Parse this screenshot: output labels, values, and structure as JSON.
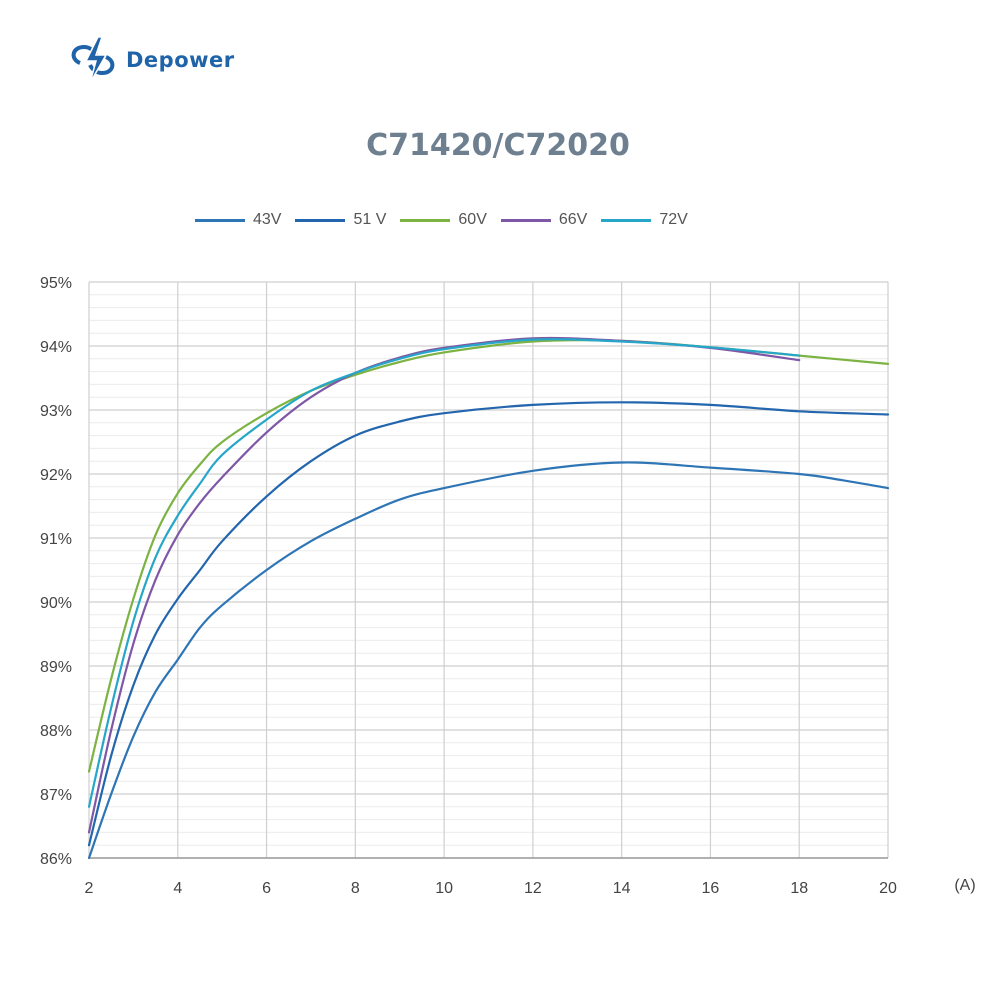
{
  "brand": {
    "logo_text": "Depower",
    "logo_icon": "lightning-bolt-plug-logo",
    "color": "#1f63a8"
  },
  "chart_data": {
    "type": "line",
    "title": "C71420/C72020",
    "xlabel": "",
    "ylabel": "",
    "x_unit_label": "(A)",
    "xlim": [
      2,
      20
    ],
    "ylim": [
      86,
      95
    ],
    "x_ticks": [
      "2",
      "4",
      "6",
      "8",
      "10",
      "12",
      "14",
      "16",
      "18",
      "20"
    ],
    "y_ticks": [
      "86%",
      "87%",
      "88%",
      "89%",
      "90%",
      "91%",
      "92%",
      "93%",
      "94%",
      "95%"
    ],
    "grid": true,
    "legend_position": "top",
    "series": [
      {
        "name": "43V",
        "color": "#2e75b6",
        "x": [
          2,
          2.5,
          3,
          3.5,
          4,
          4.5,
          5,
          6,
          7,
          8,
          9,
          10,
          12,
          14,
          16,
          18,
          19,
          20
        ],
        "y": [
          86.0,
          87.0,
          87.9,
          88.6,
          89.1,
          89.6,
          89.95,
          90.5,
          90.95,
          91.3,
          91.6,
          91.78,
          92.05,
          92.18,
          92.1,
          92.0,
          91.9,
          91.78
        ]
      },
      {
        "name": "51 V",
        "color": "#2366ad",
        "x": [
          2,
          2.5,
          3,
          3.5,
          4,
          4.5,
          5,
          6,
          7,
          8,
          9,
          10,
          12,
          14,
          16,
          18,
          20
        ],
        "y": [
          86.2,
          87.6,
          88.7,
          89.5,
          90.05,
          90.5,
          90.95,
          91.65,
          92.2,
          92.6,
          92.82,
          92.95,
          93.08,
          93.12,
          93.08,
          92.98,
          92.93
        ]
      },
      {
        "name": "60V",
        "color": "#7cb342",
        "x": [
          2,
          2.5,
          3,
          3.5,
          4,
          4.5,
          5,
          6,
          7,
          8,
          9,
          10,
          12,
          14,
          16,
          18,
          20
        ],
        "y": [
          87.35,
          88.8,
          90.05,
          91.05,
          91.7,
          92.15,
          92.5,
          92.95,
          93.3,
          93.55,
          93.75,
          93.9,
          94.07,
          94.08,
          93.98,
          93.85,
          93.72
        ]
      },
      {
        "name": "66V",
        "color": "#7e57a6",
        "x": [
          2,
          2.5,
          3,
          3.5,
          4,
          4.5,
          5,
          6,
          7,
          8,
          9,
          10,
          12,
          14,
          16,
          18
        ],
        "y": [
          86.4,
          88.0,
          89.35,
          90.35,
          91.05,
          91.55,
          91.95,
          92.65,
          93.2,
          93.58,
          93.82,
          93.97,
          94.12,
          94.08,
          93.97,
          93.78
        ]
      },
      {
        "name": "72V",
        "color": "#26a6c8",
        "x": [
          2,
          2.5,
          3,
          3.5,
          4,
          4.5,
          5,
          6,
          7,
          8,
          9,
          10,
          12,
          14,
          16,
          18
        ],
        "y": [
          86.8,
          88.35,
          89.7,
          90.7,
          91.35,
          91.85,
          92.3,
          92.85,
          93.3,
          93.58,
          93.8,
          93.95,
          94.1,
          94.07,
          93.98,
          93.85
        ]
      }
    ]
  }
}
